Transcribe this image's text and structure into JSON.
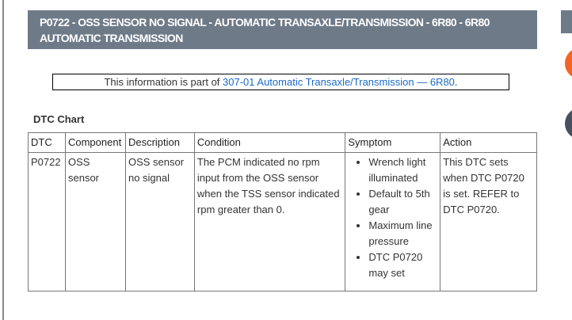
{
  "header": {
    "title": "P0722 - OSS SENSOR NO SIGNAL - AUTOMATIC TRANSAXLE/TRANSMISSION - 6R80 - 6R80 AUTOMATIC TRANSMISSION"
  },
  "info": {
    "prefix": "This information is part of ",
    "link": "307-01 Automatic Transaxle/Transmission — 6R80",
    "suffix": "."
  },
  "chart_title": "DTC Chart",
  "table": {
    "headers": [
      "DTC",
      "Component",
      "Description",
      "Condition",
      "Symptom",
      "Action"
    ],
    "row": {
      "dtc": "P0722",
      "component": "OSS sensor",
      "description": "OSS sensor no signal",
      "condition": "The PCM indicated no rpm input from the OSS sensor when the TSS sensor indicated rpm greater than 0.",
      "symptoms": [
        "Wrench light illuminated",
        "Default to 5th gear",
        "Maximum line pressure",
        "DTC P0720 may set"
      ],
      "action": "This DTC sets when DTC P0720 is set. REFER to DTC P0720."
    }
  },
  "colors": {
    "header_bg": "#6f7a88",
    "link": "#1b6ac9",
    "orange": "#f26522",
    "dark": "#46505e"
  }
}
